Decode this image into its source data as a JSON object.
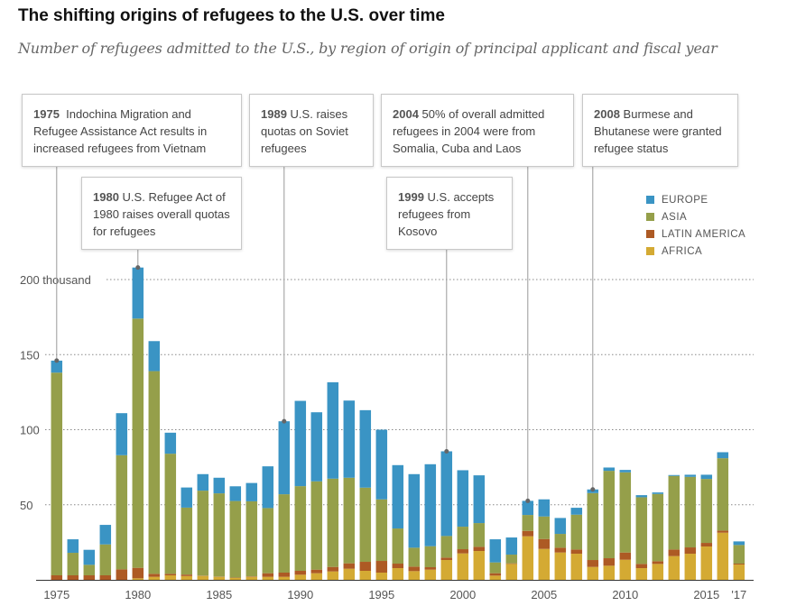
{
  "title": "The shifting origins of refugees to the U.S. over time",
  "subtitle": "Number of refugees admitted to the U.S., by region of origin of principal applicant and fiscal year",
  "annotations": [
    {
      "year_label": "1975",
      "text": "Indochina Migration and Refugee Assistance Act results in increased refugees from Vietnam",
      "year": 1975
    },
    {
      "year_label": "1980",
      "text": "U.S. Refugee Act of 1980 raises overall quotas for refugees",
      "year": 1980
    },
    {
      "year_label": "1989",
      "text": "U.S. raises quotas on Soviet refugees",
      "year": 1989
    },
    {
      "year_label": "2004",
      "text": "50% of overall admitted refugees in 2004 were from Somalia, Cuba and Laos",
      "year": 2004
    },
    {
      "year_label": "1999",
      "text": "U.S. accepts refugees from Kosovo",
      "year": 1999
    },
    {
      "year_label": "2008",
      "text": "Burmese and Bhutanese were granted refugee status",
      "year": 2008
    }
  ],
  "chart_data": {
    "type": "bar",
    "stacked": true,
    "title": "The shifting origins of refugees to the U.S. over time",
    "ylabel": "",
    "xlabel": "",
    "ylim": [
      0,
      210
    ],
    "y_unit": "thousand",
    "yticks": [
      50,
      100,
      150,
      200
    ],
    "ytick_labels": [
      "50",
      "100",
      "150",
      "200 thousand"
    ],
    "xtick_labels": [
      {
        "year": 1975,
        "label": "1975"
      },
      {
        "year": 1980,
        "label": "1980"
      },
      {
        "year": 1985,
        "label": "1985"
      },
      {
        "year": 1990,
        "label": "1990"
      },
      {
        "year": 1995,
        "label": "1995"
      },
      {
        "year": 2000,
        "label": "2000"
      },
      {
        "year": 2005,
        "label": "2005"
      },
      {
        "year": 2010,
        "label": "2010"
      },
      {
        "year": 2015,
        "label": "2015"
      },
      {
        "year": 2017,
        "label": "'17"
      }
    ],
    "grid": "horizontal dotted",
    "legend_position": "top-right",
    "categories": [
      1975,
      1976,
      1977,
      1978,
      1979,
      1980,
      1981,
      1982,
      1983,
      1984,
      1985,
      1986,
      1987,
      1988,
      1989,
      1990,
      1991,
      1992,
      1993,
      1994,
      1995,
      1996,
      1997,
      1998,
      1999,
      2000,
      2001,
      2002,
      2003,
      2004,
      2005,
      2006,
      2007,
      2008,
      2009,
      2010,
      2011,
      2012,
      2013,
      2014,
      2015,
      2016,
      2017
    ],
    "series": [
      {
        "name": "AFRICA",
        "color": "#d4aa33",
        "values": [
          0,
          0,
          0,
          0,
          0,
          1,
          2,
          3,
          2.5,
          2.6,
          2,
          1.3,
          2,
          2,
          2,
          3.4,
          4.4,
          5.6,
          7.4,
          6,
          4.8,
          7.8,
          5.8,
          6.8,
          13.2,
          17.6,
          19.2,
          2.8,
          10.6,
          29,
          20.6,
          18.2,
          17.4,
          8.6,
          9.4,
          13.4,
          7.8,
          10.6,
          15.8,
          17.4,
          22.2,
          31.4,
          10.2
        ]
      },
      {
        "name": "LATIN AMERICA",
        "color": "#ad5a24",
        "values": [
          3,
          3,
          3,
          3,
          7,
          7,
          2,
          1,
          1,
          0.2,
          0.2,
          0.2,
          0.3,
          2.4,
          2.8,
          2.6,
          2.4,
          3,
          3.6,
          6,
          7.8,
          3,
          3,
          1.6,
          1.6,
          2.8,
          2.8,
          1.6,
          0.4,
          3.6,
          6.6,
          3.2,
          2.8,
          4.6,
          5,
          4.8,
          2.8,
          1.8,
          4.4,
          4.2,
          2.4,
          1.4,
          0.6
        ]
      },
      {
        "name": "ASIA",
        "color": "#959f4a",
        "values": [
          135,
          15,
          7,
          20.6,
          76,
          166,
          135,
          80,
          44.6,
          56.6,
          55.4,
          51,
          50,
          43.4,
          52.2,
          56.4,
          58.8,
          58.8,
          57,
          49.4,
          41,
          23.4,
          12.6,
          14,
          14.4,
          15,
          15.8,
          7.2,
          5.8,
          10.6,
          15,
          9.2,
          23.2,
          44.6,
          58.2,
          53.4,
          44.4,
          44.8,
          49,
          47,
          42.6,
          48.2,
          12.4
        ]
      },
      {
        "name": "EUROPE",
        "color": "#3a94c4",
        "values": [
          8,
          9,
          10,
          13,
          28,
          34,
          20,
          14,
          13.4,
          11,
          10.4,
          9.8,
          12.2,
          27.8,
          48.6,
          56.8,
          46,
          64.2,
          51.4,
          51.6,
          46.4,
          42.2,
          49,
          54.6,
          56.4,
          37.6,
          31.8,
          15.4,
          11.4,
          9.4,
          11.4,
          10.6,
          4.6,
          2.4,
          2.2,
          1.6,
          1.4,
          1,
          0.6,
          1.4,
          2.8,
          4,
          2.4
        ]
      }
    ],
    "legend_order": [
      "EUROPE",
      "ASIA",
      "LATIN AMERICA",
      "AFRICA"
    ]
  }
}
